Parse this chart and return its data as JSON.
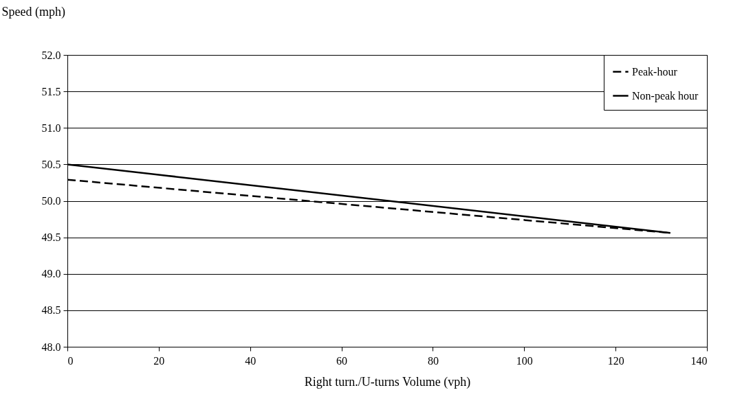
{
  "chart_data": {
    "type": "line",
    "xlabel": "Right turn./U-turns Volume (vph)",
    "ylabel": "Speed (mph)",
    "x": [
      0,
      132
    ],
    "series": [
      {
        "name": "Peak-hour",
        "color": "#000000",
        "line_style": "dashed",
        "values": [
          50.29,
          49.56
        ]
      },
      {
        "name": "Non-peak hour",
        "color": "#000000",
        "line_style": "solid",
        "values": [
          50.5,
          49.56
        ]
      }
    ],
    "xlim": [
      0,
      140
    ],
    "xticks": [
      0,
      20,
      40,
      60,
      80,
      100,
      120,
      140
    ],
    "ylim": [
      48,
      52
    ],
    "yticks": [
      {
        "value": 48,
        "label": "48.0"
      },
      {
        "value": 48.5,
        "label": "48.5"
      },
      {
        "value": 49,
        "label": "49.0"
      },
      {
        "value": 49.5,
        "label": "49.5"
      },
      {
        "value": 50,
        "label": "50.0"
      },
      {
        "value": 50.5,
        "label": "50.5"
      },
      {
        "value": 51,
        "label": "51.0"
      },
      {
        "value": 51.5,
        "label": "51.5"
      },
      {
        "value": 52,
        "label": "52.0"
      }
    ],
    "grid": "y",
    "legend": "top right",
    "marker": "none"
  }
}
